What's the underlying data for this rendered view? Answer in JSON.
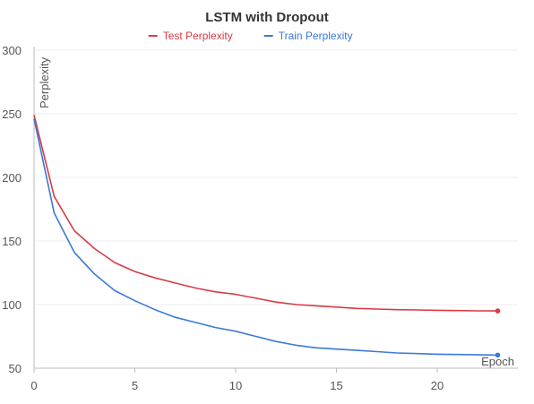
{
  "chart_data": {
    "type": "line",
    "title": "LSTM with Dropout",
    "xlabel": "Epoch",
    "ylabel": "Perplexity",
    "xlim": [
      0,
      24
    ],
    "ylim": [
      50,
      300
    ],
    "x_ticks": [
      0,
      5,
      10,
      15,
      20
    ],
    "y_ticks": [
      50,
      100,
      150,
      200,
      250,
      300
    ],
    "grid": true,
    "legend_position": "top-center",
    "x": [
      0,
      1,
      2,
      3,
      4,
      5,
      6,
      7,
      8,
      9,
      10,
      11,
      12,
      13,
      14,
      15,
      16,
      17,
      18,
      19,
      20,
      21,
      22,
      23
    ],
    "series": [
      {
        "name": "Test Perplexity",
        "color": "#d63c45",
        "values": [
          249,
          185,
          158,
          144,
          133,
          126,
          121,
          117,
          113,
          110,
          108,
          105,
          102,
          100,
          99,
          98,
          97,
          96.5,
          96,
          95.8,
          95.5,
          95.3,
          95.1,
          95
        ]
      },
      {
        "name": "Train Perplexity",
        "color": "#3b78d8",
        "values": [
          246,
          172,
          141,
          124,
          111,
          103,
          96,
          90,
          86,
          82,
          79,
          75,
          71,
          68,
          66,
          65,
          64,
          63,
          62,
          61.5,
          61,
          60.8,
          60.5,
          60.3
        ]
      }
    ]
  }
}
